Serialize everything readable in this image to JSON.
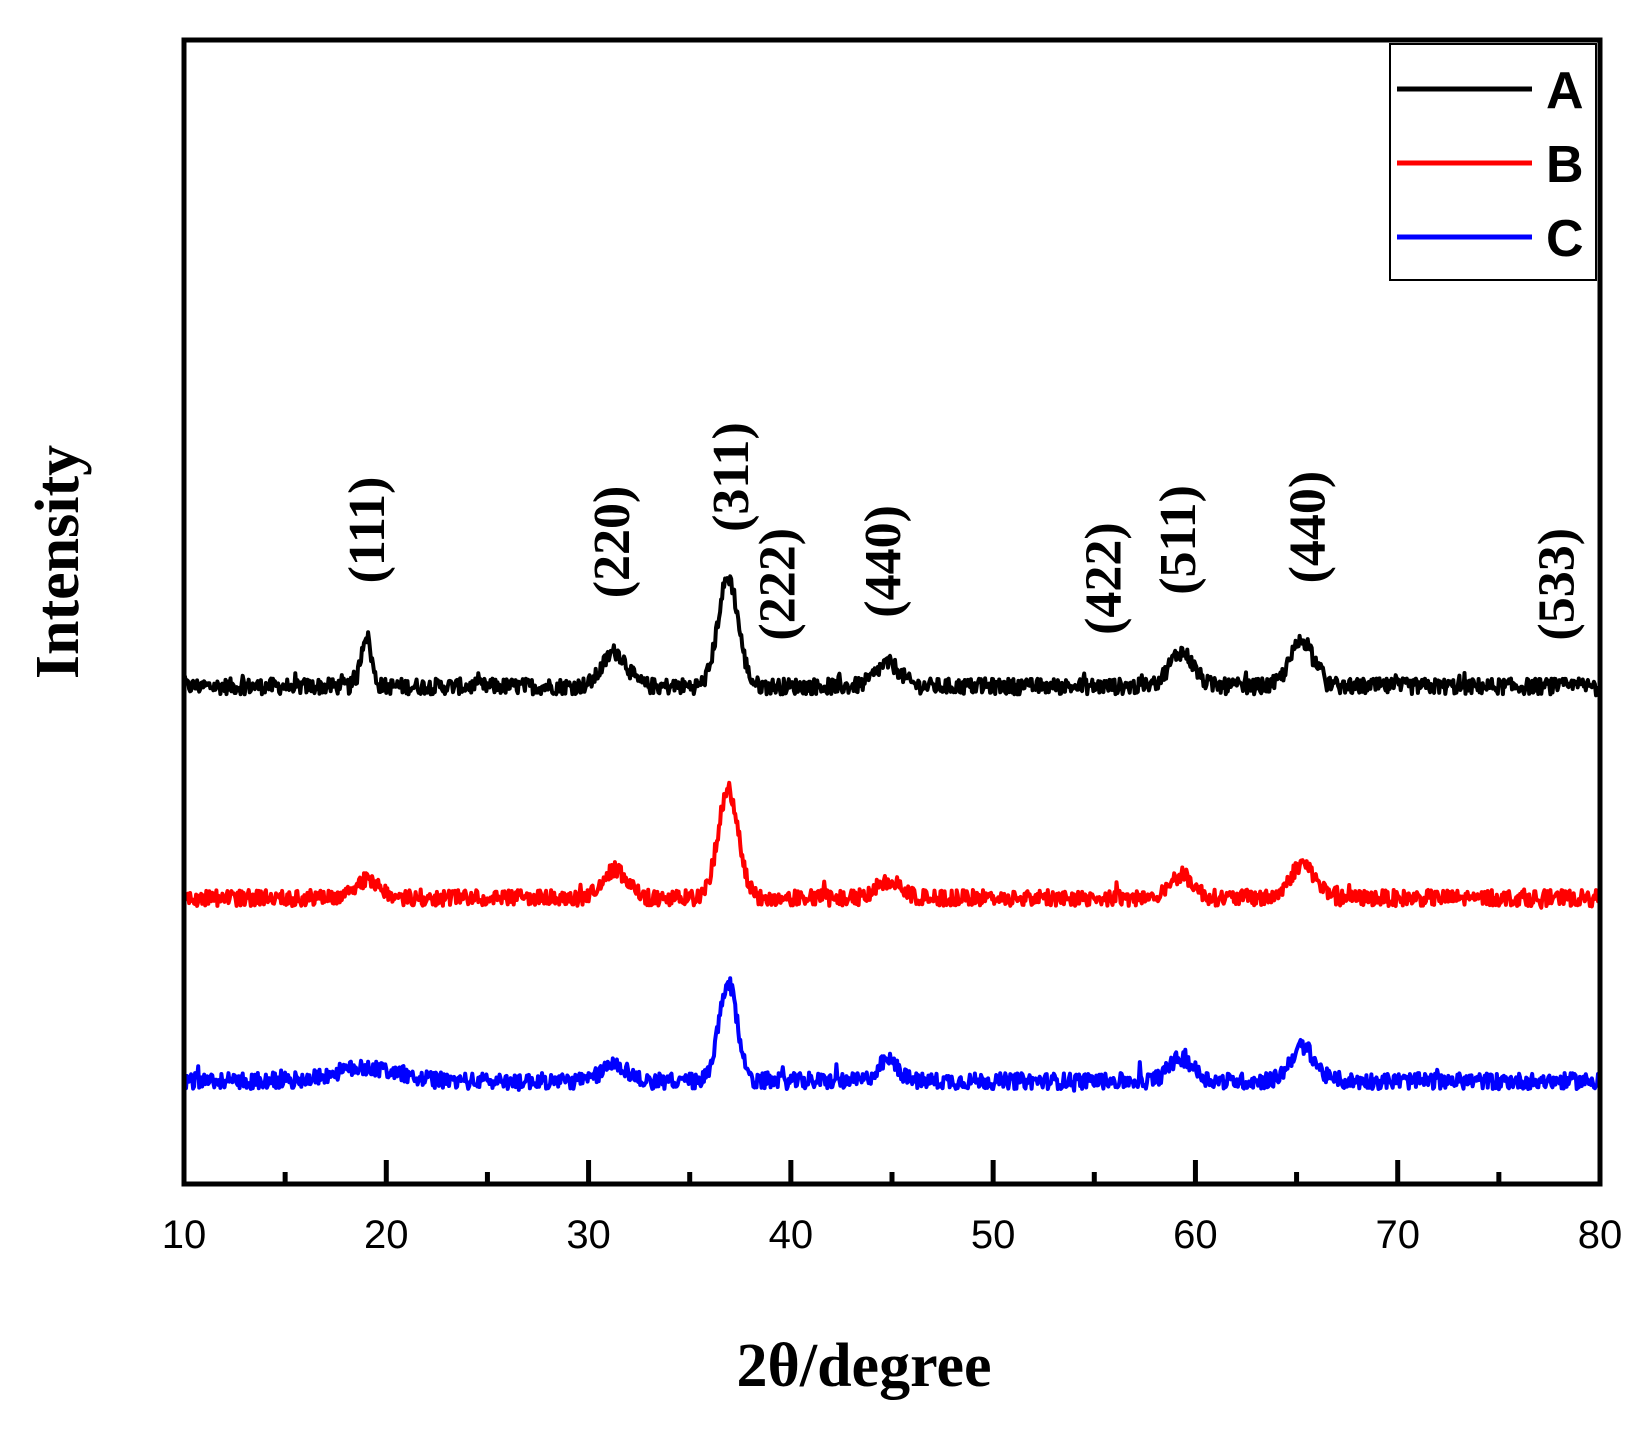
{
  "chart_data": {
    "type": "line",
    "title": "",
    "xlabel": "2θ/degree",
    "ylabel": "Intensity",
    "xlim": [
      10,
      80
    ],
    "ylim": [
      0,
      10
    ],
    "x_major_ticks": [
      10,
      20,
      30,
      40,
      50,
      60,
      70,
      80
    ],
    "x_major_tick_labels": [
      "10",
      "20",
      "30",
      "40",
      "50",
      "60",
      "70",
      "80"
    ],
    "x_minor_ticks": [
      15,
      25,
      35,
      45,
      55,
      65,
      75
    ],
    "y_ticks_shown": false,
    "grid": false,
    "legend_position": "top-right",
    "series": [
      {
        "name": "A",
        "color": "#000000",
        "baseline": 4.35,
        "noise": 0.07,
        "peaks": [
          {
            "x": 19.0,
            "height": 0.45,
            "width": 0.25
          },
          {
            "x": 31.3,
            "height": 0.3,
            "width": 0.6
          },
          {
            "x": 36.9,
            "height": 0.95,
            "width": 0.5
          },
          {
            "x": 44.8,
            "height": 0.2,
            "width": 0.6
          },
          {
            "x": 59.3,
            "height": 0.3,
            "width": 0.6
          },
          {
            "x": 65.3,
            "height": 0.4,
            "width": 0.6
          }
        ]
      },
      {
        "name": "B",
        "color": "#ff0000",
        "baseline": 2.5,
        "noise": 0.07,
        "peaks": [
          {
            "x": 19.0,
            "height": 0.15,
            "width": 0.6
          },
          {
            "x": 31.3,
            "height": 0.25,
            "width": 0.6
          },
          {
            "x": 36.9,
            "height": 0.95,
            "width": 0.5
          },
          {
            "x": 44.8,
            "height": 0.15,
            "width": 0.6
          },
          {
            "x": 59.3,
            "height": 0.2,
            "width": 0.6
          },
          {
            "x": 65.3,
            "height": 0.3,
            "width": 0.6
          }
        ]
      },
      {
        "name": "C",
        "color": "#0000ff",
        "baseline": 0.9,
        "noise": 0.07,
        "peaks": [
          {
            "x": 19.0,
            "height": 0.12,
            "width": 1.5
          },
          {
            "x": 31.3,
            "height": 0.15,
            "width": 0.6
          },
          {
            "x": 36.9,
            "height": 0.85,
            "width": 0.45
          },
          {
            "x": 44.8,
            "height": 0.18,
            "width": 0.5
          },
          {
            "x": 59.3,
            "height": 0.2,
            "width": 0.6
          },
          {
            "x": 65.3,
            "height": 0.3,
            "width": 0.6
          }
        ]
      }
    ],
    "annotations": [
      {
        "text": "(111)",
        "x": 19.0,
        "y": 5.25
      },
      {
        "text": "(220)",
        "x": 31.1,
        "y": 5.12
      },
      {
        "text": "(311)",
        "x": 37.0,
        "y": 5.7
      },
      {
        "text": "(222)",
        "x": 39.3,
        "y": 4.75
      },
      {
        "text": "(440)",
        "x": 44.5,
        "y": 4.95
      },
      {
        "text": "(422)",
        "x": 55.4,
        "y": 4.8
      },
      {
        "text": "(511)",
        "x": 59.1,
        "y": 5.15
      },
      {
        "text": "(440)",
        "x": 65.5,
        "y": 5.25
      },
      {
        "text": "(533)",
        "x": 77.8,
        "y": 4.75
      }
    ]
  }
}
